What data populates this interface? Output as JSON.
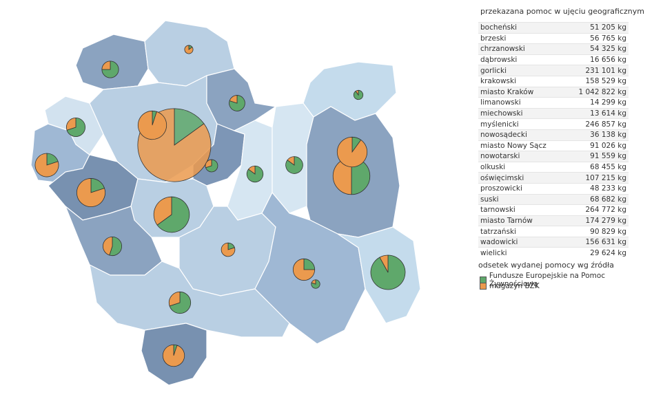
{
  "table": {
    "title": "przekazana pomoc w ujęciu geograficznym",
    "rows": [
      {
        "name": "bocheński",
        "value": 51205,
        "label": "51 205 kg",
        "shares": [
          85,
          15
        ]
      },
      {
        "name": "brzeski",
        "value": 56765,
        "label": "56 765 kg",
        "shares": [
          85,
          15
        ]
      },
      {
        "name": "chrzanowski",
        "value": 54325,
        "label": "54 325 kg",
        "shares": [
          75,
          25
        ]
      },
      {
        "name": "dąbrowski",
        "value": 16656,
        "label": "16 656 kg",
        "shares": [
          90,
          10
        ]
      },
      {
        "name": "gorlicki",
        "value": 231101,
        "label": "231 101 kg",
        "shares": [
          92,
          8
        ]
      },
      {
        "name": "krakowski",
        "value": 158529,
        "label": "158 529 kg",
        "shares": [
          5,
          95
        ]
      },
      {
        "name": "miasto Kraków",
        "value": 1042822,
        "label": "1 042 822 kg",
        "shares": [
          15,
          85
        ]
      },
      {
        "name": "limanowski",
        "value": 14299,
        "label": "14 299 kg",
        "shares": [
          80,
          20
        ]
      },
      {
        "name": "miechowski",
        "value": 13614,
        "label": "13 614 kg",
        "shares": [
          15,
          85
        ]
      },
      {
        "name": "myślenicki",
        "value": 246857,
        "label": "246 857 kg",
        "shares": [
          65,
          35
        ]
      },
      {
        "name": "nowosądecki",
        "value": 36138,
        "label": "36 138 kg",
        "shares": [
          20,
          80
        ]
      },
      {
        "name": "miasto Nowy Sącz",
        "value": 91026,
        "label": "91 026 kg",
        "shares": [
          25,
          75
        ]
      },
      {
        "name": "nowotarski",
        "value": 91559,
        "label": "91 559 kg",
        "shares": [
          5,
          95
        ]
      },
      {
        "name": "olkuski",
        "value": 68455,
        "label": "68 455 kg",
        "shares": [
          70,
          30
        ]
      },
      {
        "name": "oświęcimski",
        "value": 107215,
        "label": "107 215 kg",
        "shares": [
          20,
          80
        ]
      },
      {
        "name": "proszowicki",
        "value": 48233,
        "label": "48 233 kg",
        "shares": [
          80,
          20
        ]
      },
      {
        "name": "suski",
        "value": 68682,
        "label": "68 682 kg",
        "shares": [
          55,
          45
        ]
      },
      {
        "name": "tarnowski",
        "value": 264772,
        "label": "264 772 kg",
        "shares": [
          50,
          50
        ]
      },
      {
        "name": "miasto Tarnów",
        "value": 174279,
        "label": "174 279 kg",
        "shares": [
          10,
          90
        ]
      },
      {
        "name": "tatrzański",
        "value": 90829,
        "label": "90 829 kg",
        "shares": [
          70,
          30
        ]
      },
      {
        "name": "wadowicki",
        "value": 156631,
        "label": "156 631 kg",
        "shares": [
          20,
          80
        ]
      },
      {
        "name": "wielicki",
        "value": 29624,
        "label": "29 624 kg",
        "shares": [
          70,
          30
        ]
      }
    ]
  },
  "legend": {
    "title": "odsetek wydanej pomocy wg źródła",
    "series": [
      {
        "name": "Fundusze Europejskie na Pomoc Żywnościową",
        "color": "#5fa86b"
      },
      {
        "name": "magazyn BŻK",
        "color": "#eb9a4e"
      }
    ]
  }
}
